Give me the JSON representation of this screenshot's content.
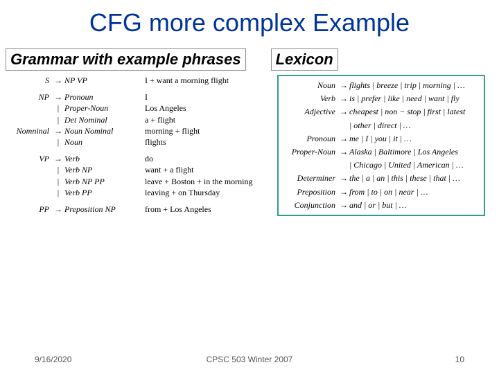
{
  "title": "CFG more complex Example",
  "headers": {
    "grammar": "Grammar with example phrases",
    "lexicon": "Lexicon"
  },
  "grammar": {
    "rows": [
      {
        "lhs": "S",
        "arrow": "→",
        "rhs": "NP VP",
        "example": "I + want a morning flight"
      },
      {
        "lhs": "",
        "arrow": "",
        "rhs": "",
        "example": ""
      },
      {
        "lhs": "NP",
        "arrow": "→",
        "rhs": "Pronoun",
        "example": "I"
      },
      {
        "lhs": "",
        "arrow": "|",
        "rhs": "Proper-Noun",
        "example": "Los Angeles"
      },
      {
        "lhs": "",
        "arrow": "|",
        "rhs": "Det Nominal",
        "example": "a + flight"
      },
      {
        "lhs": "Nomninal",
        "arrow": "→",
        "rhs": "Noun Nominal",
        "example": "morning + flight"
      },
      {
        "lhs": "",
        "arrow": "|",
        "rhs": "Noun",
        "example": "flights"
      },
      {
        "lhs": "",
        "arrow": "",
        "rhs": "",
        "example": ""
      },
      {
        "lhs": "VP",
        "arrow": "→",
        "rhs": "Verb",
        "example": "do"
      },
      {
        "lhs": "",
        "arrow": "|",
        "rhs": "Verb NP",
        "example": "want + a flight"
      },
      {
        "lhs": "",
        "arrow": "|",
        "rhs": "Verb NP PP",
        "example": "leave + Boston + in the morning"
      },
      {
        "lhs": "",
        "arrow": "|",
        "rhs": "Verb PP",
        "example": "leaving + on Thursday"
      },
      {
        "lhs": "",
        "arrow": "",
        "rhs": "",
        "example": ""
      },
      {
        "lhs": "PP",
        "arrow": "→",
        "rhs": "Preposition NP",
        "example": "from + Los Angeles"
      }
    ]
  },
  "lexicon": {
    "rows": [
      {
        "lhs": "Noun",
        "arrow": "→",
        "rhs": "flights | breeze | trip | morning | …"
      },
      {
        "lhs": "Verb",
        "arrow": "→",
        "rhs": "is | prefer | like | need | want | fly"
      },
      {
        "lhs": "Adjective",
        "arrow": "→",
        "rhs": "cheapest | non − stop | first | latest"
      },
      {
        "lhs": "",
        "arrow": "",
        "rhs": "| other | direct | …"
      },
      {
        "lhs": "Pronoun",
        "arrow": "→",
        "rhs": "me | I | you | it | …"
      },
      {
        "lhs": "Proper-Noun",
        "arrow": "→",
        "rhs": "Alaska | Baltimore | Los Angeles"
      },
      {
        "lhs": "",
        "arrow": "",
        "rhs": "| Chicago | United | American | …"
      },
      {
        "lhs": "Determiner",
        "arrow": "→",
        "rhs": "the | a | an | this | these | that | …"
      },
      {
        "lhs": "Preposition",
        "arrow": "→",
        "rhs": "from | to | on | near | …"
      },
      {
        "lhs": "Conjunction",
        "arrow": "→",
        "rhs": "and | or | but | …"
      }
    ]
  },
  "footer": {
    "date": "9/16/2020",
    "course": "CPSC 503 Winter 2007",
    "page": "10"
  },
  "colors": {
    "title": "#003399",
    "lexicon_border": "#2e9e8f",
    "footer_text": "#555555",
    "background": "#ffffff"
  }
}
